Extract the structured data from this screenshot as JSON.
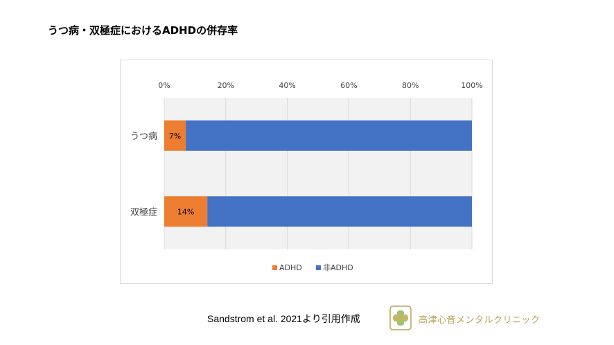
{
  "title": "うつ病・双極症におけるADHDの併存率",
  "credit": "Sandstrom et al. 2021より引用作成",
  "clinic_name": "高津心音メンタルクリニック",
  "colors": {
    "adhd": "#ed7d31",
    "non_adhd": "#4472c4",
    "grid": "#d9d9d9",
    "logo": "#b8a256"
  },
  "chart_data": {
    "type": "bar",
    "orientation": "horizontal",
    "stacked": "percent",
    "categories": [
      "うつ病",
      "双極症"
    ],
    "series": [
      {
        "name": "ADHD",
        "values": [
          7,
          14
        ],
        "labels": [
          "7%",
          "14%"
        ]
      },
      {
        "name": "非ADHD",
        "values": [
          93,
          86
        ]
      }
    ],
    "xlim": [
      0,
      100
    ],
    "xticks": [
      "0%",
      "20%",
      "40%",
      "60%",
      "80%",
      "100%"
    ],
    "grid": true,
    "legend_position": "bottom"
  }
}
